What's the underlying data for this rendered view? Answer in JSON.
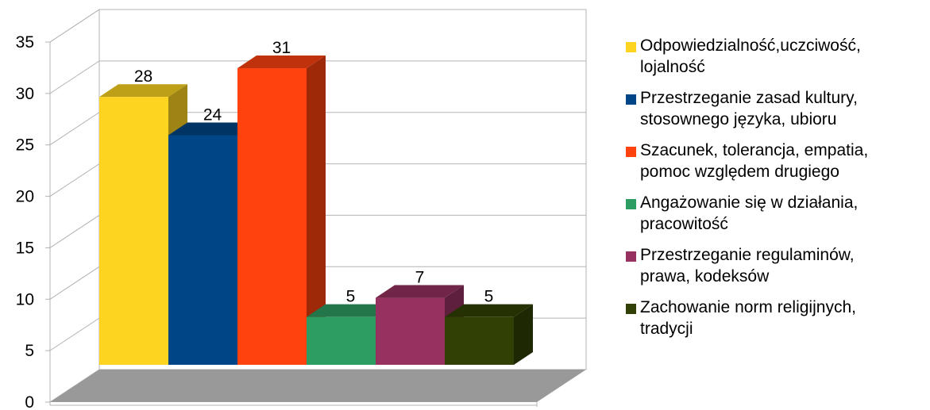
{
  "chart_data": {
    "type": "bar",
    "title": "",
    "xlabel": "",
    "ylabel": "",
    "ylim": [
      0,
      35
    ],
    "y_ticks": [
      "0",
      "5",
      "10",
      "15",
      "20",
      "25",
      "30",
      "35"
    ],
    "grid": true,
    "three_d": true,
    "legend_position": "right",
    "series": [
      {
        "name": "Odpowiedzialność,uczciwość,\nlojalność",
        "value": 28,
        "label": "28",
        "color": "#FDD520"
      },
      {
        "name": "Przestrzeganie zasad kultury,\nstosownego języka, ubioru",
        "value": 24,
        "label": "24",
        "color": "#004586"
      },
      {
        "name": "Szacunek, tolerancja, empatia,\npomoc względem drugiego",
        "value": 31,
        "label": "31",
        "color": "#FF420E"
      },
      {
        "name": "Angażowanie się w działania,\npracowitość",
        "value": 5,
        "label": "5",
        "color": "#2E9D62"
      },
      {
        "name": "Przestrzeganie regulaminów,\nprawa, kodeksów",
        "value": 7,
        "label": "7",
        "color": "#973260"
      },
      {
        "name": "Zachowanie norm religijnych,\ntradycji",
        "value": 5,
        "label": "5",
        "color": "#314004"
      }
    ]
  }
}
